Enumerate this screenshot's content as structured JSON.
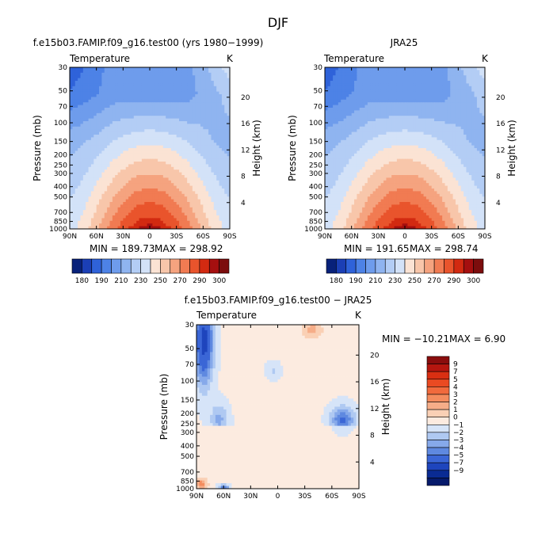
{
  "figure": {
    "title": "DJF"
  },
  "chart_data": [
    {
      "type": "heatmap",
      "title": "f.e15b03.FAMIP.f09_g16.test00 (yrs 1980−1999)",
      "field_label": "Temperature",
      "units": "K",
      "ylabel": "Pressure (mb)",
      "ylabel_right": "Height (km)",
      "x_ticks": [
        "90N",
        "60N",
        "30N",
        "0",
        "30S",
        "60S",
        "90S"
      ],
      "y_ticks": [
        "30",
        "50",
        "70",
        "100",
        "150",
        "200",
        "250",
        "300",
        "400",
        "500",
        "700",
        "850",
        "1000"
      ],
      "y_ticks_right": [
        "20",
        "16",
        "12",
        "8",
        "4"
      ],
      "min_label": "MIN = 189.73",
      "max_label": "MAX = 298.92",
      "min": 189.73,
      "max": 298.92
    },
    {
      "type": "heatmap",
      "title": "JRA25",
      "field_label": "Temperature",
      "units": "K",
      "ylabel": "Pressure (mb)",
      "ylabel_right": "Height (km)",
      "x_ticks": [
        "90N",
        "60N",
        "30N",
        "0",
        "30S",
        "60S",
        "90S"
      ],
      "y_ticks": [
        "30",
        "50",
        "70",
        "100",
        "150",
        "200",
        "250",
        "300",
        "400",
        "500",
        "700",
        "850",
        "1000"
      ],
      "y_ticks_right": [
        "20",
        "16",
        "12",
        "8",
        "4"
      ],
      "min_label": "MIN = 191.65",
      "max_label": "MAX = 298.74",
      "min": 191.65,
      "max": 298.74
    },
    {
      "type": "heatmap",
      "title": "f.e15b03.FAMIP.f09_g16.test00 − JRA25",
      "field_label": "Temperature",
      "units": "K",
      "ylabel": "Pressure (mb)",
      "ylabel_right": "Height (km)",
      "x_ticks": [
        "90N",
        "60N",
        "30N",
        "0",
        "30S",
        "60S",
        "90S"
      ],
      "y_ticks": [
        "30",
        "50",
        "70",
        "100",
        "150",
        "200",
        "250",
        "300",
        "400",
        "500",
        "700",
        "850",
        "1000"
      ],
      "y_ticks_right": [
        "20",
        "16",
        "12",
        "8",
        "4"
      ],
      "min_label": "MIN = −10.21",
      "max_label": "MAX =    6.90",
      "min": -10.21,
      "max": 6.9
    }
  ],
  "colorbar_abs": {
    "labels": [
      "180",
      "190",
      "210",
      "230",
      "250",
      "270",
      "290",
      "300"
    ],
    "colors": [
      "#08217a",
      "#1b3fb5",
      "#2f62d9",
      "#4d82e6",
      "#6e9cec",
      "#8fb4f0",
      "#b3cdf5",
      "#d3e2f8",
      "#fbe3d4",
      "#f8c6aa",
      "#f5a37f",
      "#f17b52",
      "#e9542c",
      "#d22a11",
      "#a50f0f",
      "#7c0d0d"
    ]
  },
  "colorbar_diff": {
    "labels": [
      "9",
      "7",
      "5",
      "4",
      "3",
      "2",
      "1",
      "0",
      "−1",
      "−2",
      "−3",
      "−4",
      "−5",
      "−7",
      "−9"
    ],
    "colors": [
      "#8a0d0d",
      "#b5160f",
      "#d92f12",
      "#ea4a22",
      "#f16a3d",
      "#f48c5e",
      "#f6ad88",
      "#fad0b5",
      "#fcebe0",
      "#d6e4f8",
      "#afc9f2",
      "#86a9ea",
      "#5f89e0",
      "#3b66d6",
      "#1e45bd",
      "#0a2b93",
      "#061a6b"
    ]
  },
  "colors": {
    "cold_deep": "#08217a",
    "cold_mid": "#4d82e6",
    "cold_light": "#b3cdf5",
    "warm_light": "#fbe3d4",
    "warm_mid": "#f17b52",
    "warm_deep": "#a50f0f"
  }
}
